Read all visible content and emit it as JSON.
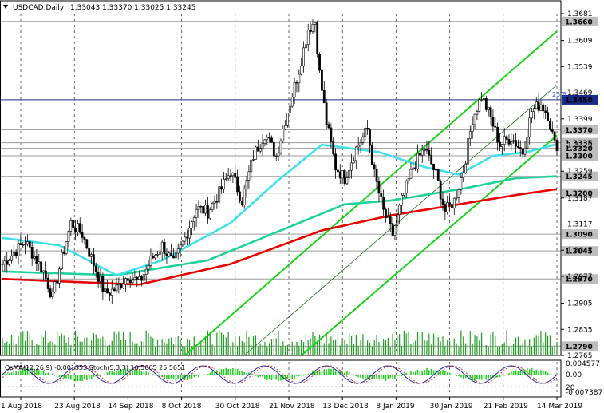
{
  "chart_data": {
    "type": "candlestick",
    "symbol": "USDCAD,Daily",
    "ohlc_header": "1.33043 1.33370 1.33025 1.33245",
    "ylim": [
      1.2765,
      1.3681
    ],
    "y_ticks": [
      "1.3681",
      "1.3609",
      "1.3539",
      "1.3469",
      "1.3399",
      "1.3329",
      "1.3259",
      "1.3187",
      "1.3117",
      "1.3047",
      "1.2977",
      "1.2905",
      "1.2835",
      "1.2765"
    ],
    "price_levels": [
      {
        "label": "1.3660",
        "value": 1.366,
        "style": "grey"
      },
      {
        "label": "1.3450",
        "value": 1.345,
        "style": "blue"
      },
      {
        "label": "1.3370",
        "value": 1.337,
        "style": "grey"
      },
      {
        "label": "1.3335",
        "value": 1.3335,
        "style": "grey"
      },
      {
        "label": "1.3320",
        "value": 1.332,
        "style": "grey"
      },
      {
        "label": "1.3300",
        "value": 1.33,
        "style": "grey"
      },
      {
        "label": "1.3245",
        "value": 1.3245,
        "style": "grey"
      },
      {
        "label": "1.3200",
        "value": 1.32,
        "style": "grey"
      },
      {
        "label": "1.3090",
        "value": 1.309,
        "style": "grey"
      },
      {
        "label": "1.3045",
        "value": 1.3045,
        "style": "grey"
      },
      {
        "label": "1.2970",
        "value": 1.297,
        "style": "grey"
      },
      {
        "label": "1.2790",
        "value": 1.279,
        "style": "grey"
      }
    ],
    "fib_label": "23.6",
    "x_labels": [
      "1 Aug 2018",
      "23 Aug 2018",
      "14 Sep 2018",
      "8 Oct 2018",
      "30 Oct 2018",
      "21 Nov 2018",
      "13 Dec 2018",
      "8 Jan 2019",
      "30 Jan 2019",
      "21 Feb 2019",
      "14 Mar 2019"
    ],
    "price_path": [
      [
        0,
        1.301
      ],
      [
        10,
        1.307
      ],
      [
        18,
        1.299
      ],
      [
        22,
        1.292
      ],
      [
        26,
        1.3025
      ],
      [
        30,
        1.312
      ],
      [
        35,
        1.309
      ],
      [
        40,
        1.301
      ],
      [
        45,
        1.293
      ],
      [
        50,
        1.2945
      ],
      [
        55,
        1.298
      ],
      [
        60,
        1.296
      ],
      [
        65,
        1.302
      ],
      [
        70,
        1.306
      ],
      [
        75,
        1.301
      ],
      [
        80,
        1.308
      ],
      [
        85,
        1.316
      ],
      [
        90,
        1.315
      ],
      [
        95,
        1.32
      ],
      [
        100,
        1.326
      ],
      [
        105,
        1.318
      ],
      [
        110,
        1.33
      ],
      [
        115,
        1.336
      ],
      [
        120,
        1.33
      ],
      [
        125,
        1.342
      ],
      [
        130,
        1.353
      ],
      [
        134,
        1.364
      ],
      [
        137,
        1.366
      ],
      [
        139,
        1.352
      ],
      [
        142,
        1.339
      ],
      [
        146,
        1.327
      ],
      [
        150,
        1.324
      ],
      [
        155,
        1.332
      ],
      [
        160,
        1.337
      ],
      [
        163,
        1.325
      ],
      [
        167,
        1.315
      ],
      [
        171,
        1.309
      ],
      [
        175,
        1.318
      ],
      [
        180,
        1.327
      ],
      [
        185,
        1.332
      ],
      [
        190,
        1.325
      ],
      [
        194,
        1.315
      ],
      [
        198,
        1.318
      ],
      [
        202,
        1.326
      ],
      [
        206,
        1.34
      ],
      [
        210,
        1.346
      ],
      [
        214,
        1.34
      ],
      [
        218,
        1.333
      ],
      [
        223,
        1.335
      ],
      [
        228,
        1.331
      ],
      [
        232,
        1.342
      ],
      [
        236,
        1.344
      ],
      [
        239,
        1.341
      ],
      [
        242,
        1.333
      ]
    ],
    "ema_cyan": [
      [
        0,
        1.308
      ],
      [
        25,
        1.306
      ],
      [
        50,
        1.298
      ],
      [
        70,
        1.302
      ],
      [
        100,
        1.312
      ],
      [
        120,
        1.323
      ],
      [
        140,
        1.333
      ],
      [
        165,
        1.331
      ],
      [
        185,
        1.327
      ],
      [
        200,
        1.325
      ],
      [
        215,
        1.33
      ],
      [
        230,
        1.331
      ],
      [
        242,
        1.333
      ]
    ],
    "ema_green": [
      [
        0,
        1.299
      ],
      [
        50,
        1.298
      ],
      [
        90,
        1.302
      ],
      [
        130,
        1.312
      ],
      [
        150,
        1.317
      ],
      [
        170,
        1.318
      ],
      [
        200,
        1.321
      ],
      [
        225,
        1.324
      ],
      [
        242,
        1.3245
      ]
    ],
    "ema_red": [
      [
        0,
        1.297
      ],
      [
        60,
        1.2955
      ],
      [
        100,
        1.301
      ],
      [
        140,
        1.31
      ],
      [
        170,
        1.314
      ],
      [
        200,
        1.317
      ],
      [
        225,
        1.3195
      ],
      [
        242,
        1.321
      ]
    ],
    "channel_lines": [
      {
        "from": [
          80,
          1.2765
        ],
        "to": [
          243,
          1.3634
        ]
      },
      {
        "from": [
          131,
          1.2765
        ],
        "to": [
          243,
          1.3355
        ]
      },
      {
        "from": [
          106,
          1.2765
        ],
        "to": [
          243,
          1.349
        ],
        "thin": true
      }
    ],
    "oscillator": {
      "label": "OsMA(12,26,9) -0.001353 Stoch(5,3,3) 10.5665 25.5651",
      "right_labels": [
        "0.004577",
        "0.00",
        "20",
        "-0.007387"
      ]
    }
  }
}
